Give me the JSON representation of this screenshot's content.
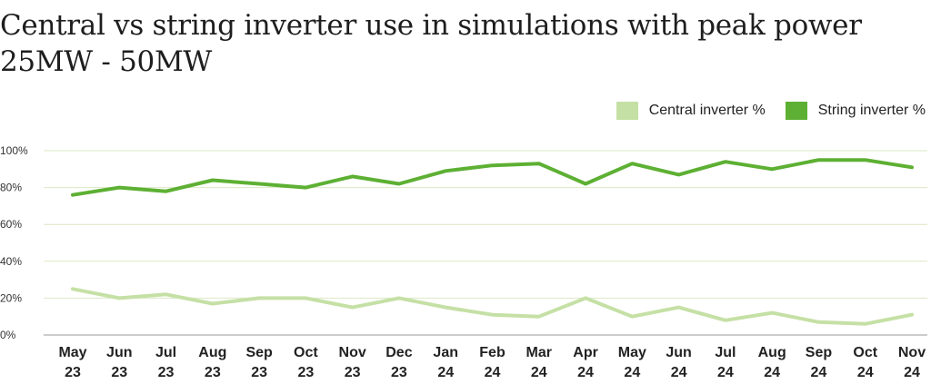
{
  "colors": {
    "central": "#c5e0a5",
    "string": "#5db033",
    "grid": "#dbe8c6",
    "axis": "#999999"
  },
  "chart_data": {
    "type": "line",
    "title": "Central vs string inverter use in simulations with peak power 25MW - 50MW",
    "legend_position": "top-right",
    "grid": true,
    "ylim": [
      0,
      100
    ],
    "y_ticks": [
      0,
      20,
      40,
      60,
      80,
      100
    ],
    "y_tick_labels": [
      "0%",
      "20%",
      "40%",
      "60%",
      "80%",
      "100%"
    ],
    "categories": [
      [
        "May",
        "23"
      ],
      [
        "Jun",
        "23"
      ],
      [
        "Jul",
        "23"
      ],
      [
        "Aug",
        "23"
      ],
      [
        "Sep",
        "23"
      ],
      [
        "Oct",
        "23"
      ],
      [
        "Nov",
        "23"
      ],
      [
        "Dec",
        "23"
      ],
      [
        "Jan",
        "24"
      ],
      [
        "Feb",
        "24"
      ],
      [
        "Mar",
        "24"
      ],
      [
        "Apr",
        "24"
      ],
      [
        "May",
        "24"
      ],
      [
        "Jun",
        "24"
      ],
      [
        "Jul",
        "24"
      ],
      [
        "Aug",
        "24"
      ],
      [
        "Sep",
        "24"
      ],
      [
        "Oct",
        "24"
      ],
      [
        "Nov",
        "24"
      ]
    ],
    "series": [
      {
        "name": "Central inverter %",
        "values": [
          25,
          20,
          22,
          17,
          20,
          20,
          15,
          20,
          15,
          11,
          10,
          20,
          10,
          15,
          8,
          12,
          7,
          6,
          11
        ]
      },
      {
        "name": "String inverter %",
        "values": [
          76,
          80,
          78,
          84,
          82,
          80,
          86,
          82,
          89,
          92,
          93,
          82,
          93,
          87,
          94,
          90,
          95,
          95,
          91
        ]
      }
    ]
  }
}
